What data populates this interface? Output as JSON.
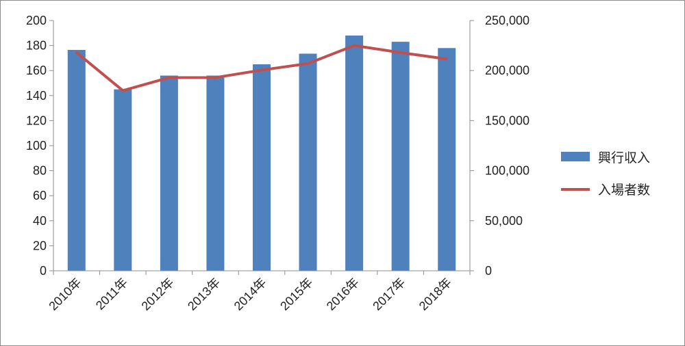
{
  "chart_data": {
    "type": "bar",
    "categories": [
      "2010年",
      "2011年",
      "2012年",
      "2013年",
      "2014年",
      "2015年",
      "2016年",
      "2017年",
      "2018年"
    ],
    "series": [
      {
        "name": "興行収入",
        "type": "bar",
        "axis": "left",
        "color": "#4f81bd",
        "values": [
          176.5,
          145,
          156,
          156,
          165,
          173.5,
          188,
          183,
          178
        ]
      },
      {
        "name": "入場者数",
        "type": "line",
        "axis": "right",
        "color": "#c0504d",
        "values": [
          218000,
          180000,
          193000,
          193000,
          200500,
          207000,
          225000,
          218000,
          211500
        ]
      }
    ],
    "y_left": {
      "lim": [
        0,
        200
      ],
      "ticks": [
        0,
        20,
        40,
        60,
        80,
        100,
        120,
        140,
        160,
        180,
        200
      ],
      "tick_labels": [
        "0",
        "20",
        "40",
        "60",
        "80",
        "100",
        "120",
        "140",
        "160",
        "180",
        "200"
      ]
    },
    "y_right": {
      "lim": [
        0,
        250000
      ],
      "ticks": [
        0,
        50000,
        100000,
        150000,
        200000,
        250000
      ],
      "tick_labels": [
        "0",
        "50,000",
        "100,000",
        "150,000",
        "200,000",
        "250,000"
      ]
    },
    "grid": false,
    "legend": {
      "position": "right",
      "entries": [
        "興行収入",
        "入場者数"
      ]
    },
    "title": "",
    "xlabel": "",
    "ylabel": ""
  }
}
